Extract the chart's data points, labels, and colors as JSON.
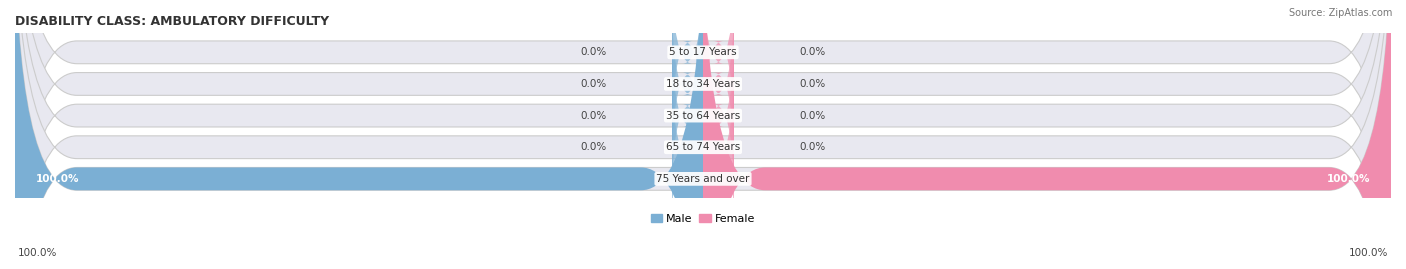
{
  "title": "DISABILITY CLASS: AMBULATORY DIFFICULTY",
  "source": "Source: ZipAtlas.com",
  "categories": [
    "5 to 17 Years",
    "18 to 34 Years",
    "35 to 64 Years",
    "65 to 74 Years",
    "75 Years and over"
  ],
  "male_values": [
    0.0,
    0.0,
    0.0,
    0.0,
    100.0
  ],
  "female_values": [
    0.0,
    0.0,
    0.0,
    0.0,
    100.0
  ],
  "male_color": "#7bafd4",
  "female_color": "#f08cae",
  "bar_bg_color": "#e8e8f0",
  "bar_border_color": "#cccccc",
  "title_color": "#333333",
  "label_color": "#444444",
  "category_color": "#333333",
  "legend_male": "Male",
  "legend_female": "Female",
  "bar_height": 0.72,
  "figsize": [
    14.06,
    2.69
  ],
  "dpi": 100,
  "bottom_total_left": "100.0%",
  "bottom_total_right": "100.0%"
}
